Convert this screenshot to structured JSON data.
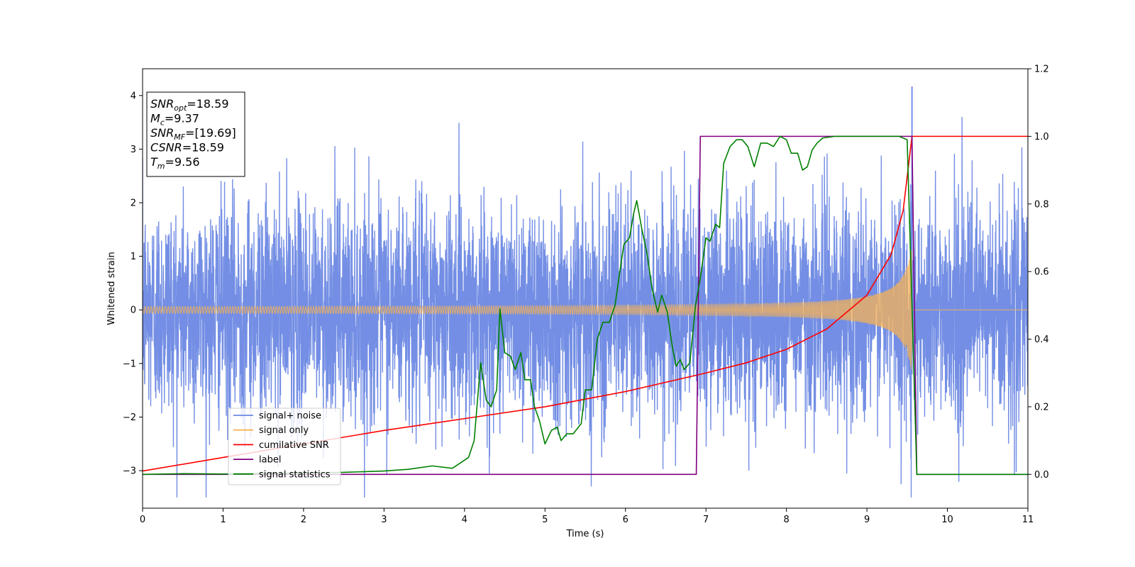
{
  "chart_data": {
    "type": "line",
    "xlabel": "Time (s)",
    "ylabel": "Whitened strain",
    "xlim": [
      0,
      11
    ],
    "ylim_left": [
      -3.7,
      4.5
    ],
    "ylim_right": [
      -0.1,
      1.2
    ],
    "x_ticks": [
      "0",
      "1",
      "2",
      "3",
      "4",
      "5",
      "6",
      "7",
      "8",
      "9",
      "10",
      "11"
    ],
    "y_ticks_left": [
      "−3",
      "−2",
      "−1",
      "0",
      "1",
      "2",
      "3",
      "4"
    ],
    "y_ticks_right": [
      "0.0",
      "0.2",
      "0.4",
      "0.6",
      "0.8",
      "1.0",
      "1.2"
    ],
    "legend_position": "lower-left",
    "info_box": [
      {
        "var": "SNR",
        "sub": "opt",
        "value": "=18.59"
      },
      {
        "var": "M",
        "sub": "c",
        "value": "=9.37"
      },
      {
        "var": "SNR",
        "sub": "MF",
        "value": "=[19.69]"
      },
      {
        "var": "CSNR",
        "sub": "",
        "value": "=18.59"
      },
      {
        "var": "T",
        "sub": "m",
        "value": "=9.56"
      }
    ],
    "series": [
      {
        "name": "signal+ noise",
        "color": "#6b88e3",
        "axis": "left",
        "kind": "noise",
        "sigma": 1.0,
        "spike": {
          "x": 9.56,
          "y": 4.17
        }
      },
      {
        "name": "signal only",
        "color": "#f5b256",
        "axis": "left",
        "kind": "chirp",
        "t_merge": 9.56,
        "amp_start": 0.05,
        "amp_end": 1.15
      },
      {
        "name": "cumilative SNR",
        "color": "#ff0000",
        "axis": "right",
        "points": [
          [
            0,
            0.01
          ],
          [
            1,
            0.05
          ],
          [
            2,
            0.09
          ],
          [
            3,
            0.13
          ],
          [
            4,
            0.165
          ],
          [
            5,
            0.2
          ],
          [
            6,
            0.245
          ],
          [
            7,
            0.3
          ],
          [
            7.5,
            0.33
          ],
          [
            8,
            0.37
          ],
          [
            8.5,
            0.43
          ],
          [
            9,
            0.53
          ],
          [
            9.3,
            0.65
          ],
          [
            9.45,
            0.78
          ],
          [
            9.56,
            1.0
          ],
          [
            11,
            1.0
          ]
        ]
      },
      {
        "name": "label",
        "color": "#800080",
        "axis": "right",
        "points": [
          [
            0,
            0
          ],
          [
            6.88,
            0
          ],
          [
            6.93,
            1
          ],
          [
            9.56,
            1
          ],
          [
            9.62,
            0
          ],
          [
            11,
            0
          ]
        ]
      },
      {
        "name": "signal statistics",
        "color": "#008000",
        "axis": "right",
        "points": [
          [
            0,
            0
          ],
          [
            0.5,
            0.002
          ],
          [
            1,
            0.001
          ],
          [
            1.5,
            0.003
          ],
          [
            2,
            0.004
          ],
          [
            2.5,
            0.006
          ],
          [
            3,
            0.01
          ],
          [
            3.3,
            0.015
          ],
          [
            3.6,
            0.025
          ],
          [
            3.85,
            0.018
          ],
          [
            4.05,
            0.05
          ],
          [
            4.12,
            0.1
          ],
          [
            4.2,
            0.33
          ],
          [
            4.27,
            0.22
          ],
          [
            4.33,
            0.2
          ],
          [
            4.4,
            0.25
          ],
          [
            4.44,
            0.49
          ],
          [
            4.5,
            0.36
          ],
          [
            4.57,
            0.35
          ],
          [
            4.63,
            0.31
          ],
          [
            4.7,
            0.36
          ],
          [
            4.75,
            0.28
          ],
          [
            4.82,
            0.28
          ],
          [
            4.87,
            0.2
          ],
          [
            4.93,
            0.16
          ],
          [
            5.0,
            0.09
          ],
          [
            5.08,
            0.13
          ],
          [
            5.15,
            0.14
          ],
          [
            5.2,
            0.1
          ],
          [
            5.27,
            0.12
          ],
          [
            5.35,
            0.12
          ],
          [
            5.45,
            0.15
          ],
          [
            5.5,
            0.25
          ],
          [
            5.58,
            0.25
          ],
          [
            5.65,
            0.4
          ],
          [
            5.72,
            0.45
          ],
          [
            5.8,
            0.45
          ],
          [
            5.87,
            0.5
          ],
          [
            5.93,
            0.6
          ],
          [
            5.98,
            0.68
          ],
          [
            6.05,
            0.7
          ],
          [
            6.1,
            0.77
          ],
          [
            6.14,
            0.81
          ],
          [
            6.2,
            0.73
          ],
          [
            6.27,
            0.65
          ],
          [
            6.33,
            0.55
          ],
          [
            6.4,
            0.48
          ],
          [
            6.45,
            0.53
          ],
          [
            6.52,
            0.48
          ],
          [
            6.58,
            0.38
          ],
          [
            6.63,
            0.32
          ],
          [
            6.68,
            0.34
          ],
          [
            6.73,
            0.31
          ],
          [
            6.8,
            0.33
          ],
          [
            6.87,
            0.5
          ],
          [
            6.93,
            0.58
          ],
          [
            7.0,
            0.7
          ],
          [
            7.05,
            0.69
          ],
          [
            7.12,
            0.74
          ],
          [
            7.17,
            0.73
          ],
          [
            7.22,
            0.92
          ],
          [
            7.3,
            0.97
          ],
          [
            7.38,
            0.99
          ],
          [
            7.45,
            0.99
          ],
          [
            7.52,
            0.97
          ],
          [
            7.6,
            0.91
          ],
          [
            7.68,
            0.98
          ],
          [
            7.76,
            0.98
          ],
          [
            7.84,
            0.97
          ],
          [
            7.92,
            1.0
          ],
          [
            8.0,
            0.99
          ],
          [
            8.06,
            0.95
          ],
          [
            8.14,
            0.95
          ],
          [
            8.2,
            0.9
          ],
          [
            8.26,
            0.91
          ],
          [
            8.32,
            0.96
          ],
          [
            8.38,
            0.98
          ],
          [
            8.45,
            0.995
          ],
          [
            8.6,
            1.0
          ],
          [
            9.0,
            1.0
          ],
          [
            9.4,
            1.0
          ],
          [
            9.5,
            0.99
          ],
          [
            9.56,
            0.5
          ],
          [
            9.62,
            0.0
          ],
          [
            11,
            0
          ]
        ]
      }
    ]
  }
}
